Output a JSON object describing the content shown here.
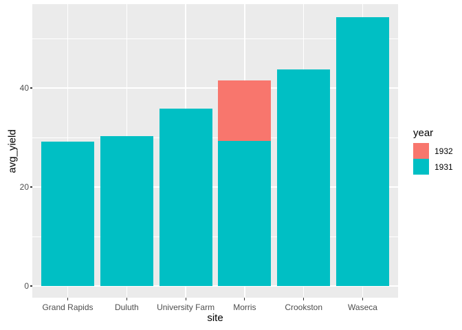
{
  "chart_data": {
    "type": "bar",
    "title": "",
    "xlabel": "site",
    "ylabel": "avg_yield",
    "categories": [
      "Grand Rapids",
      "Duluth",
      "University Farm",
      "Morris",
      "Crookston",
      "Waseca"
    ],
    "series": [
      {
        "name": "1932",
        "color": "#F8766D",
        "values": [
          null,
          null,
          null,
          41.5,
          null,
          null
        ]
      },
      {
        "name": "1931",
        "color": "#00BFC4",
        "values": [
          29.1,
          30.3,
          35.8,
          29.3,
          43.7,
          54.35
        ]
      }
    ],
    "note": "overlaid bars (position identity): 1931 drawn in front of 1932, so 1932 is visible only at Morris where it exceeds 1931",
    "y_axis": {
      "ticks": [
        0,
        20,
        40
      ],
      "tick_labels": [
        "0",
        "20",
        "40"
      ],
      "minor_gridlines": [
        10,
        30,
        50
      ],
      "range": [
        -2.4,
        56.9
      ]
    },
    "grid": true,
    "legend": {
      "title": "year",
      "position": "right",
      "entries": [
        {
          "label": "1932",
          "color": "#F8766D"
        },
        {
          "label": "1931",
          "color": "#00BFC4"
        }
      ]
    }
  },
  "style": {
    "panel_bg": "#EBEBEB",
    "grid_color": "#FFFFFF",
    "axis_text_color": "#4D4D4D",
    "tick_mark_color": "#333333",
    "title_color": "#000000",
    "background": "#FFFFFF"
  }
}
